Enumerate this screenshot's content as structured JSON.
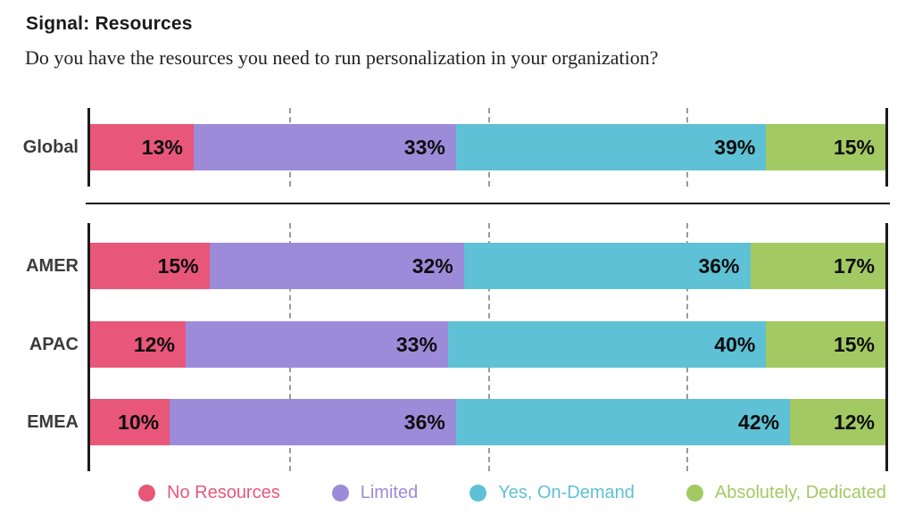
{
  "title": "Signal: Resources",
  "subtitle": "Do you have the resources you need to run personalization in your organization?",
  "colors": {
    "no_resources": "#E8577A",
    "limited": "#9C8BD9",
    "yes_on_demand": "#5EC1D5",
    "absolutely_dedicated": "#A3C963",
    "axis": "#1a1a1a",
    "gridline": "#9a9a9a",
    "row_label": "#3b3b3b",
    "value_label": "#0d0d0d"
  },
  "chart_data": {
    "type": "bar",
    "stacked": true,
    "orientation": "horizontal",
    "categories": [
      "Global",
      "AMER",
      "APAC",
      "EMEA"
    ],
    "groups": [
      {
        "name": "global",
        "category_indices": [
          0
        ]
      },
      {
        "name": "regions",
        "category_indices": [
          1,
          2,
          3
        ]
      }
    ],
    "series": [
      {
        "name": "No Resources",
        "color": "#E8577A",
        "values": [
          13,
          15,
          12,
          10
        ]
      },
      {
        "name": "Limited",
        "color": "#9C8BD9",
        "values": [
          33,
          32,
          33,
          36
        ]
      },
      {
        "name": "Yes, On-Demand",
        "color": "#5EC1D5",
        "values": [
          39,
          36,
          40,
          42
        ]
      },
      {
        "name": "Absolutely, Dedicated",
        "color": "#A3C963",
        "values": [
          15,
          17,
          15,
          12
        ]
      }
    ],
    "value_suffix": "%",
    "xlim": [
      0,
      100
    ],
    "gridlines_pct": [
      25,
      50,
      75
    ],
    "grid": true,
    "legend_position": "bottom"
  }
}
